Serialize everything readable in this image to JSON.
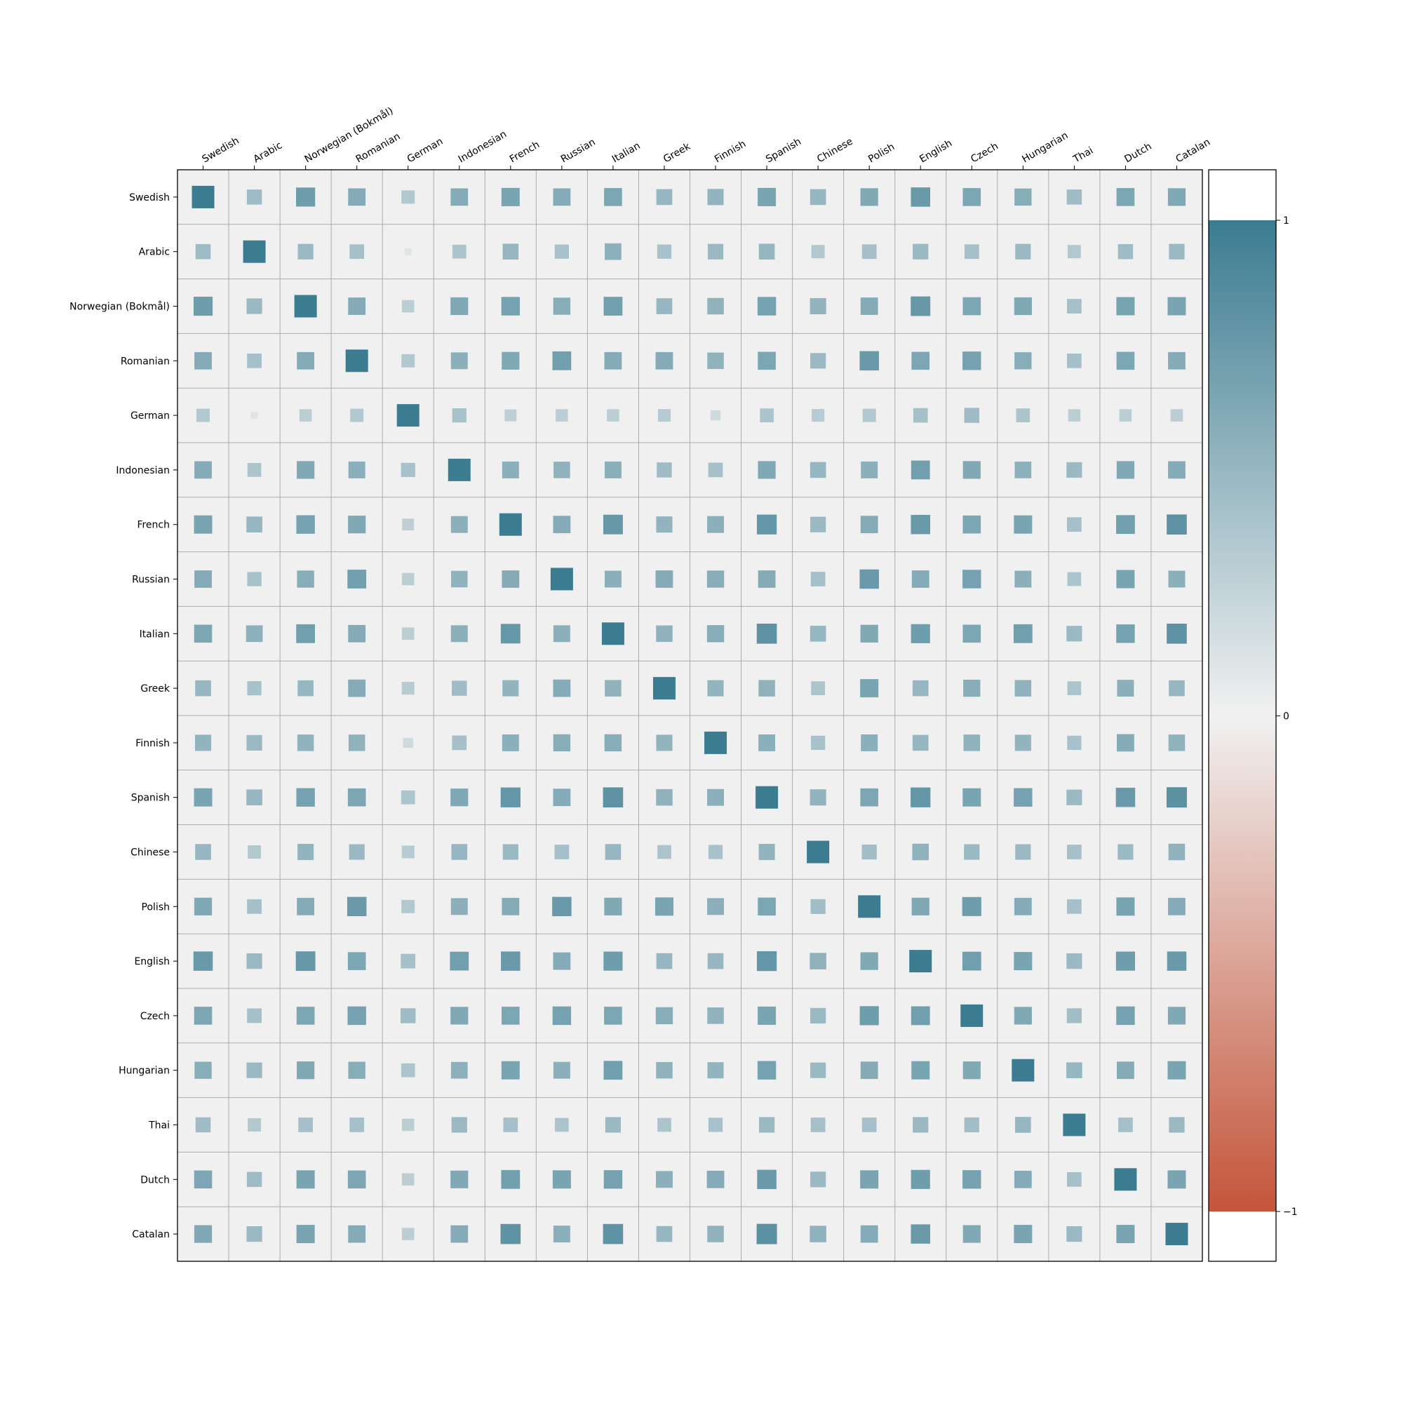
{
  "chart_data": {
    "type": "heatmap",
    "labels": [
      "Swedish",
      "Arabic",
      "Norwegian (Bokmål)",
      "Romanian",
      "German",
      "Indonesian",
      "French",
      "Russian",
      "Italian",
      "Greek",
      "Finnish",
      "Spanish",
      "Chinese",
      "Polish",
      "English",
      "Czech",
      "Hungarian",
      "Thai",
      "Dutch",
      "Catalan"
    ],
    "matrix": [
      [
        1.0,
        0.45,
        0.72,
        0.6,
        0.35,
        0.6,
        0.66,
        0.6,
        0.64,
        0.5,
        0.52,
        0.66,
        0.5,
        0.62,
        0.74,
        0.64,
        0.58,
        0.45,
        0.64,
        0.62
      ],
      [
        0.45,
        1.0,
        0.48,
        0.42,
        0.1,
        0.38,
        0.5,
        0.4,
        0.55,
        0.4,
        0.48,
        0.5,
        0.35,
        0.42,
        0.48,
        0.42,
        0.48,
        0.35,
        0.45,
        0.48
      ],
      [
        0.72,
        0.48,
        1.0,
        0.6,
        0.3,
        0.62,
        0.68,
        0.58,
        0.7,
        0.5,
        0.54,
        0.68,
        0.52,
        0.6,
        0.76,
        0.64,
        0.62,
        0.42,
        0.66,
        0.66
      ],
      [
        0.6,
        0.42,
        0.6,
        1.0,
        0.35,
        0.56,
        0.62,
        0.7,
        0.6,
        0.6,
        0.54,
        0.64,
        0.48,
        0.74,
        0.64,
        0.68,
        0.58,
        0.42,
        0.64,
        0.6
      ],
      [
        0.35,
        0.1,
        0.3,
        0.35,
        1.0,
        0.4,
        0.28,
        0.3,
        0.3,
        0.32,
        0.2,
        0.38,
        0.32,
        0.35,
        0.42,
        0.45,
        0.38,
        0.3,
        0.3,
        0.3
      ],
      [
        0.6,
        0.38,
        0.62,
        0.56,
        0.4,
        1.0,
        0.56,
        0.54,
        0.56,
        0.45,
        0.42,
        0.62,
        0.5,
        0.56,
        0.7,
        0.62,
        0.55,
        0.48,
        0.62,
        0.6
      ],
      [
        0.66,
        0.5,
        0.68,
        0.62,
        0.28,
        0.56,
        1.0,
        0.6,
        0.76,
        0.52,
        0.56,
        0.78,
        0.48,
        0.6,
        0.74,
        0.64,
        0.66,
        0.42,
        0.7,
        0.8
      ],
      [
        0.6,
        0.4,
        0.58,
        0.7,
        0.3,
        0.54,
        0.6,
        1.0,
        0.56,
        0.6,
        0.58,
        0.6,
        0.42,
        0.74,
        0.6,
        0.68,
        0.56,
        0.38,
        0.66,
        0.56
      ],
      [
        0.64,
        0.55,
        0.7,
        0.6,
        0.3,
        0.56,
        0.76,
        0.56,
        1.0,
        0.54,
        0.58,
        0.8,
        0.5,
        0.62,
        0.72,
        0.64,
        0.7,
        0.48,
        0.68,
        0.8
      ],
      [
        0.5,
        0.4,
        0.5,
        0.6,
        0.32,
        0.45,
        0.52,
        0.6,
        0.54,
        1.0,
        0.52,
        0.54,
        0.38,
        0.66,
        0.5,
        0.58,
        0.54,
        0.38,
        0.56,
        0.5
      ],
      [
        0.52,
        0.48,
        0.54,
        0.54,
        0.2,
        0.42,
        0.56,
        0.58,
        0.58,
        0.52,
        1.0,
        0.56,
        0.4,
        0.56,
        0.5,
        0.54,
        0.52,
        0.4,
        0.6,
        0.54
      ],
      [
        0.66,
        0.5,
        0.68,
        0.64,
        0.38,
        0.62,
        0.78,
        0.6,
        0.8,
        0.54,
        0.56,
        1.0,
        0.52,
        0.64,
        0.78,
        0.66,
        0.68,
        0.48,
        0.74,
        0.82
      ],
      [
        0.5,
        0.35,
        0.52,
        0.48,
        0.32,
        0.5,
        0.48,
        0.42,
        0.5,
        0.38,
        0.4,
        0.52,
        1.0,
        0.44,
        0.54,
        0.48,
        0.48,
        0.42,
        0.48,
        0.54
      ],
      [
        0.62,
        0.42,
        0.6,
        0.74,
        0.35,
        0.56,
        0.6,
        0.74,
        0.62,
        0.66,
        0.56,
        0.64,
        0.44,
        1.0,
        0.62,
        0.72,
        0.6,
        0.42,
        0.66,
        0.6
      ],
      [
        0.74,
        0.48,
        0.76,
        0.64,
        0.42,
        0.7,
        0.74,
        0.6,
        0.72,
        0.5,
        0.5,
        0.78,
        0.54,
        0.62,
        1.0,
        0.7,
        0.66,
        0.48,
        0.72,
        0.74
      ],
      [
        0.64,
        0.42,
        0.64,
        0.68,
        0.45,
        0.62,
        0.64,
        0.68,
        0.64,
        0.58,
        0.54,
        0.66,
        0.48,
        0.72,
        0.7,
        1.0,
        0.62,
        0.44,
        0.68,
        0.62
      ],
      [
        0.58,
        0.48,
        0.62,
        0.58,
        0.38,
        0.55,
        0.66,
        0.56,
        0.7,
        0.54,
        0.52,
        0.68,
        0.48,
        0.6,
        0.66,
        0.62,
        1.0,
        0.5,
        0.6,
        0.66
      ],
      [
        0.45,
        0.35,
        0.42,
        0.42,
        0.3,
        0.48,
        0.42,
        0.38,
        0.48,
        0.38,
        0.4,
        0.48,
        0.42,
        0.42,
        0.48,
        0.44,
        0.5,
        1.0,
        0.42,
        0.48
      ],
      [
        0.64,
        0.45,
        0.66,
        0.64,
        0.3,
        0.62,
        0.7,
        0.66,
        0.68,
        0.56,
        0.6,
        0.74,
        0.48,
        0.66,
        0.72,
        0.68,
        0.6,
        0.42,
        1.0,
        0.66
      ],
      [
        0.62,
        0.48,
        0.66,
        0.6,
        0.3,
        0.6,
        0.8,
        0.56,
        0.8,
        0.5,
        0.54,
        0.82,
        0.54,
        0.6,
        0.74,
        0.62,
        0.66,
        0.48,
        0.66,
        1.0
      ]
    ],
    "vmin": -1,
    "vmax": 1,
    "colorbar_ticks": [
      1,
      0,
      -1
    ],
    "colorbar_tick_labels": [
      "1",
      "0",
      "−1"
    ],
    "colors": {
      "positive": "#3b7c91",
      "neutral": "#f1f1f1",
      "negative": "#c4553a",
      "cell_background": "#f0f0f0",
      "grid": "#ababab"
    },
    "x_labels_position": "top",
    "colorbar_position": "right"
  }
}
